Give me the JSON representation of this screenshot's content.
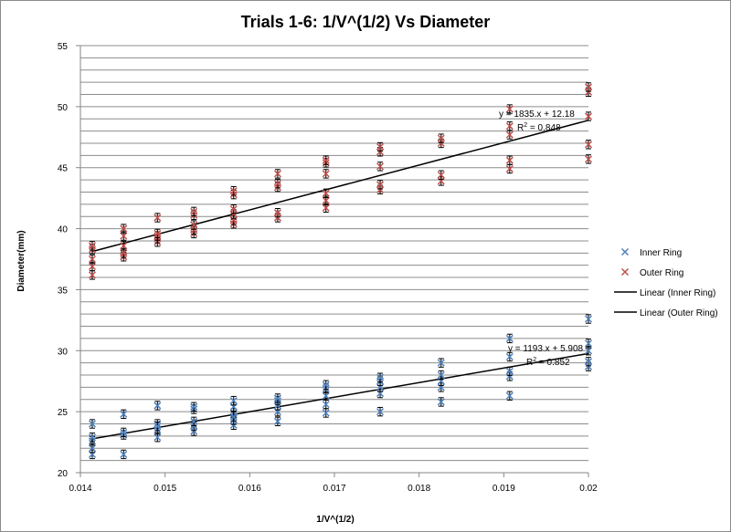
{
  "chart_data": {
    "type": "scatter",
    "title": "Trials 1-6: 1/V^(1/2) Vs Diameter",
    "xlabel": "1/V^(1/2)",
    "ylabel": "Diameter(mm)",
    "xlim": [
      0.014,
      0.02
    ],
    "ylim": [
      20,
      55
    ],
    "x_ticks": [
      "0.014",
      "0.015",
      "0.016",
      "0.017",
      "0.018",
      "0.019",
      "0.02"
    ],
    "y_ticks": [
      "20",
      "25",
      "30",
      "35",
      "40",
      "45",
      "50",
      "55"
    ],
    "grid": "horizontal",
    "legend_position": "right",
    "legend": [
      "Inner Ring",
      "Outer Ring",
      "Linear (Inner Ring)",
      "Linear (Outer Ring)"
    ],
    "colors": {
      "inner": "#4F81BD",
      "outer": "#C0504D",
      "trend": "#000000",
      "errorbar": "#000000",
      "grid": "#8c8c8c"
    },
    "series": [
      {
        "name": "Inner Ring",
        "marker": "x",
        "points": [
          [
            0.01414,
            21.5
          ],
          [
            0.01414,
            22.0
          ],
          [
            0.01414,
            22.6
          ],
          [
            0.01414,
            24.0
          ],
          [
            0.01414,
            22.9
          ],
          [
            0.01451,
            21.5
          ],
          [
            0.01451,
            23.1
          ],
          [
            0.01451,
            23.3
          ],
          [
            0.01451,
            24.8
          ],
          [
            0.01491,
            22.9
          ],
          [
            0.01491,
            23.5
          ],
          [
            0.01491,
            24.0
          ],
          [
            0.01491,
            25.5
          ],
          [
            0.01491,
            23.8
          ],
          [
            0.01534,
            23.4
          ],
          [
            0.01534,
            23.8
          ],
          [
            0.01534,
            24.2
          ],
          [
            0.01534,
            25.2
          ],
          [
            0.01534,
            25.4
          ],
          [
            0.01581,
            23.9
          ],
          [
            0.01581,
            24.3
          ],
          [
            0.01581,
            24.9
          ],
          [
            0.01581,
            25.4
          ],
          [
            0.01581,
            25.9
          ],
          [
            0.01581,
            24.6
          ],
          [
            0.01633,
            24.2
          ],
          [
            0.01633,
            25.0
          ],
          [
            0.01633,
            25.5
          ],
          [
            0.01633,
            25.9
          ],
          [
            0.01633,
            26.1
          ],
          [
            0.0169,
            24.9
          ],
          [
            0.0169,
            25.6
          ],
          [
            0.0169,
            26.3
          ],
          [
            0.0169,
            26.9
          ],
          [
            0.0169,
            27.2
          ],
          [
            0.01754,
            25.0
          ],
          [
            0.01754,
            26.5
          ],
          [
            0.01754,
            27.0
          ],
          [
            0.01754,
            27.5
          ],
          [
            0.01754,
            27.8
          ],
          [
            0.01826,
            25.8
          ],
          [
            0.01826,
            27.0
          ],
          [
            0.01826,
            27.5
          ],
          [
            0.01826,
            28.0
          ],
          [
            0.01826,
            29.0
          ],
          [
            0.01907,
            26.3
          ],
          [
            0.01907,
            27.9
          ],
          [
            0.01907,
            28.3
          ],
          [
            0.01907,
            29.5
          ],
          [
            0.01907,
            31.0
          ],
          [
            0.02,
            28.7
          ],
          [
            0.02,
            29.1
          ],
          [
            0.02,
            30.0
          ],
          [
            0.02,
            30.6
          ],
          [
            0.02,
            32.6
          ]
        ]
      },
      {
        "name": "Outer Ring",
        "marker": "x",
        "points": [
          [
            0.01414,
            36.2
          ],
          [
            0.01414,
            36.9
          ],
          [
            0.01414,
            37.5
          ],
          [
            0.01414,
            38.3
          ],
          [
            0.01414,
            38.6
          ],
          [
            0.01451,
            37.7
          ],
          [
            0.01451,
            38.0
          ],
          [
            0.01451,
            38.6
          ],
          [
            0.01451,
            39.4
          ],
          [
            0.01451,
            40.0
          ],
          [
            0.01491,
            38.9
          ],
          [
            0.01491,
            39.2
          ],
          [
            0.01491,
            39.4
          ],
          [
            0.01491,
            39.6
          ],
          [
            0.01491,
            40.9
          ],
          [
            0.01534,
            39.6
          ],
          [
            0.01534,
            39.9
          ],
          [
            0.01534,
            40.3
          ],
          [
            0.01534,
            41.1
          ],
          [
            0.01534,
            41.4
          ],
          [
            0.01581,
            40.4
          ],
          [
            0.01581,
            40.7
          ],
          [
            0.01581,
            41.2
          ],
          [
            0.01581,
            41.6
          ],
          [
            0.01581,
            42.8
          ],
          [
            0.01581,
            43.1
          ],
          [
            0.01633,
            40.9
          ],
          [
            0.01633,
            41.3
          ],
          [
            0.01633,
            43.4
          ],
          [
            0.01633,
            43.7
          ],
          [
            0.01633,
            44.5
          ],
          [
            0.0169,
            41.7
          ],
          [
            0.0169,
            42.3
          ],
          [
            0.0169,
            42.9
          ],
          [
            0.0169,
            44.5
          ],
          [
            0.0169,
            45.4
          ],
          [
            0.0169,
            45.6
          ],
          [
            0.01754,
            43.2
          ],
          [
            0.01754,
            43.6
          ],
          [
            0.01754,
            45.1
          ],
          [
            0.01754,
            46.3
          ],
          [
            0.01754,
            46.7
          ],
          [
            0.01826,
            43.9
          ],
          [
            0.01826,
            44.4
          ],
          [
            0.01826,
            47.0
          ],
          [
            0.01826,
            47.4
          ],
          [
            0.01907,
            44.9
          ],
          [
            0.01907,
            45.6
          ],
          [
            0.01907,
            47.7
          ],
          [
            0.01907,
            48.4
          ],
          [
            0.01907,
            49.8
          ],
          [
            0.02,
            45.7
          ],
          [
            0.02,
            46.9
          ],
          [
            0.02,
            49.2
          ],
          [
            0.02,
            51.2
          ],
          [
            0.02,
            51.6
          ]
        ]
      }
    ],
    "trendlines": [
      {
        "name": "Linear (Inner Ring)",
        "slope": 1193,
        "intercept": 5.908,
        "equation": "y = 1193.x + 5.908",
        "r2_prefix": "R",
        "r2_sup": "2",
        "r2_value": " = 0.852"
      },
      {
        "name": "Linear (Outer Ring)",
        "slope": 1835,
        "intercept": 12.18,
        "equation": "y = 1835.x + 12.18",
        "r2_prefix": "R",
        "r2_sup": "2",
        "r2_value": " = 0.848"
      }
    ],
    "error_bar": 0.35
  }
}
